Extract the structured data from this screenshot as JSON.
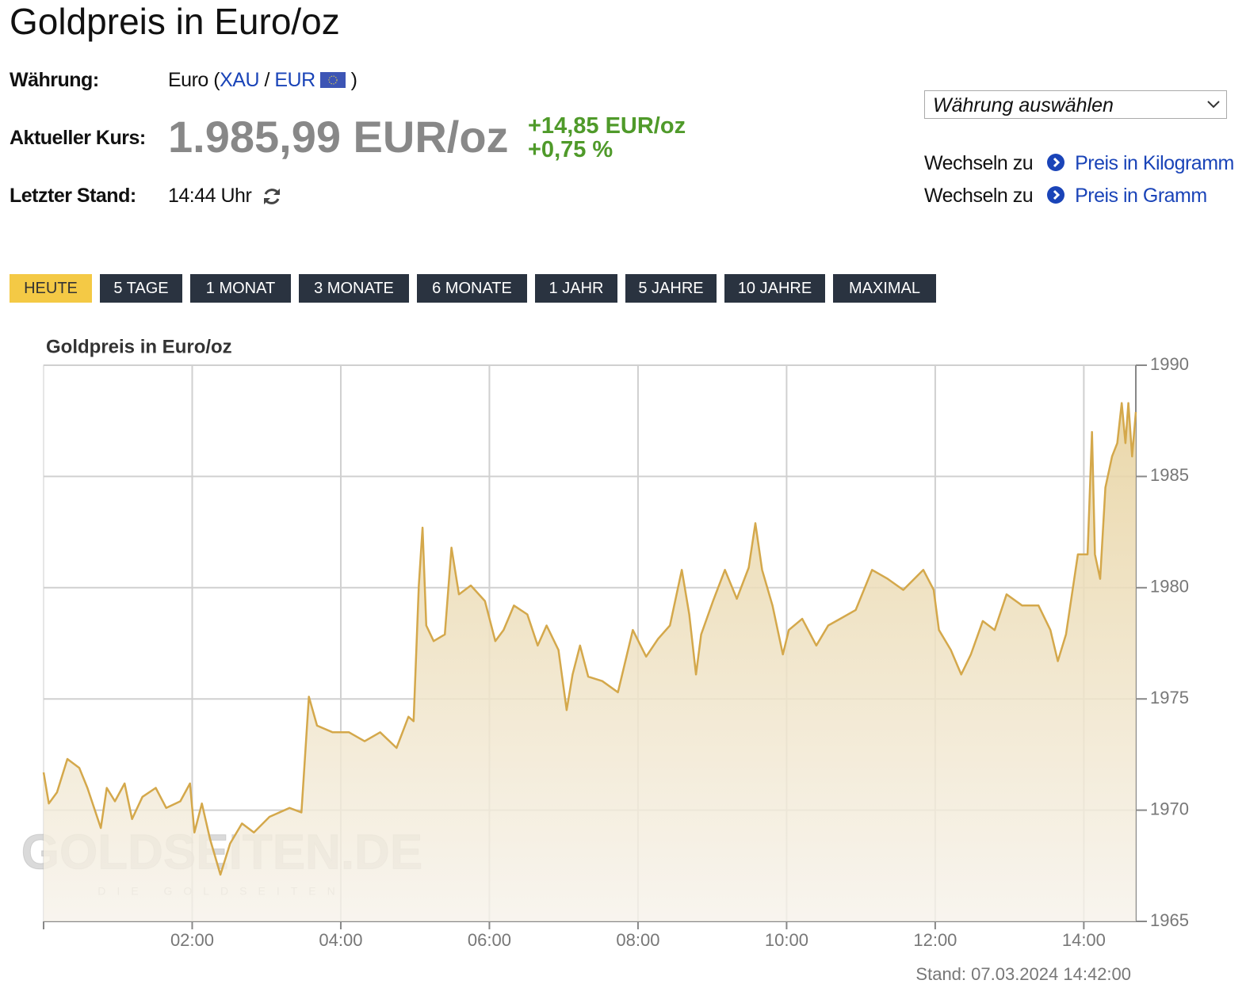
{
  "header": {
    "title": "Goldpreis in Euro/oz"
  },
  "info": {
    "currency_label": "Währung:",
    "currency": "Euro",
    "open": "(",
    "xau": "XAU",
    "slash": "/",
    "eur": "EUR",
    "close": ")",
    "price_label": "Aktueller Kurs:",
    "price": "1.985,99 EUR/oz",
    "change_abs": "+14,85 EUR/oz",
    "change_pct": "+0,75 %",
    "stand_label": "Letzter Stand:",
    "time": "14:44 Uhr"
  },
  "sidebar": {
    "select": "Währung auswählen",
    "links": [
      {
        "prefix": "Wechseln zu",
        "label": "Preis in Kilogramm"
      },
      {
        "prefix": "Wechseln zu",
        "label": "Preis in Gramm"
      }
    ]
  },
  "tabs": [
    "HEUTE",
    "5 TAGE",
    "1 MONAT",
    "3 MONATE",
    "6 MONATE",
    "1 JAHR",
    "5 JAHRE",
    "10 JAHRE",
    "MAXIMAL"
  ],
  "chart_data": {
    "type": "area",
    "title": "Goldpreis in Euro/oz",
    "color": "#d4a84b",
    "watermark": "GOLDSEITEN.DE",
    "watermark_sub": "DIE GOLDSEITEN",
    "annotation": "Stand: 07.03.2024 14:42:00",
    "x": [
      0.0,
      0.07,
      0.18,
      0.32,
      0.48,
      0.59,
      0.77,
      0.85,
      0.96,
      1.09,
      1.19,
      1.33,
      1.51,
      1.65,
      1.84,
      1.97,
      2.03,
      2.13,
      2.24,
      2.38,
      2.51,
      2.67,
      2.83,
      3.04,
      3.31,
      3.47,
      3.57,
      3.68,
      3.89,
      4.11,
      4.32,
      4.53,
      4.75,
      4.91,
      4.98,
      5.05,
      5.1,
      5.15,
      5.25,
      5.4,
      5.49,
      5.59,
      5.75,
      5.94,
      6.08,
      6.19,
      6.33,
      6.51,
      6.65,
      6.77,
      6.93,
      7.04,
      7.12,
      7.22,
      7.33,
      7.52,
      7.73,
      7.93,
      8.11,
      8.27,
      8.43,
      8.59,
      8.69,
      8.78,
      8.85,
      9.01,
      9.17,
      9.33,
      9.49,
      9.58,
      9.67,
      9.81,
      9.95,
      10.03,
      10.21,
      10.4,
      10.56,
      10.72,
      10.93,
      11.15,
      11.36,
      11.57,
      11.84,
      11.98,
      12.05,
      12.21,
      12.35,
      12.48,
      12.64,
      12.8,
      12.96,
      13.17,
      13.39,
      13.55,
      13.65,
      13.76,
      13.92,
      14.05,
      14.11,
      14.15,
      14.22,
      14.29,
      14.38,
      14.45,
      14.51,
      14.56,
      14.6,
      14.65,
      14.7
    ],
    "values": [
      1971.7,
      1970.3,
      1970.8,
      1972.3,
      1971.9,
      1971.0,
      1969.2,
      1971.0,
      1970.4,
      1971.2,
      1969.6,
      1970.6,
      1971.0,
      1970.1,
      1970.4,
      1971.2,
      1969.0,
      1970.3,
      1968.7,
      1967.1,
      1968.5,
      1969.4,
      1969.0,
      1969.7,
      1970.1,
      1969.9,
      1975.1,
      1973.8,
      1973.5,
      1973.5,
      1973.1,
      1973.5,
      1972.8,
      1974.2,
      1974.0,
      1980.1,
      1982.7,
      1978.3,
      1977.6,
      1977.9,
      1981.8,
      1979.7,
      1980.1,
      1979.4,
      1977.6,
      1978.1,
      1979.2,
      1978.8,
      1977.4,
      1978.3,
      1977.2,
      1974.5,
      1976.1,
      1977.4,
      1976.0,
      1975.8,
      1975.3,
      1978.1,
      1976.9,
      1977.7,
      1978.3,
      1980.8,
      1978.8,
      1976.1,
      1977.9,
      1979.4,
      1980.8,
      1979.5,
      1980.9,
      1982.9,
      1980.8,
      1979.2,
      1977.0,
      1978.1,
      1978.6,
      1977.4,
      1978.3,
      1978.6,
      1979.0,
      1980.8,
      1980.4,
      1979.9,
      1980.8,
      1979.9,
      1978.1,
      1977.2,
      1976.1,
      1977.0,
      1978.5,
      1978.1,
      1979.7,
      1979.2,
      1979.2,
      1978.1,
      1976.7,
      1977.9,
      1981.5,
      1981.5,
      1987.0,
      1981.5,
      1980.4,
      1984.5,
      1985.9,
      1986.5,
      1988.3,
      1986.5,
      1988.3,
      1985.9,
      1987.9
    ],
    "xlim": [
      0,
      14.7
    ],
    "xticks": [
      {
        "value": 2,
        "label": "02:00"
      },
      {
        "value": 4,
        "label": "04:00"
      },
      {
        "value": 6,
        "label": "06:00"
      },
      {
        "value": 8,
        "label": "08:00"
      },
      {
        "value": 10,
        "label": "10:00"
      },
      {
        "value": 12,
        "label": "12:00"
      },
      {
        "value": 14,
        "label": "14:00"
      }
    ],
    "ylim": [
      1965,
      1990
    ],
    "yticks": [
      1965,
      1970,
      1975,
      1980,
      1985,
      1990
    ],
    "grid": true
  }
}
